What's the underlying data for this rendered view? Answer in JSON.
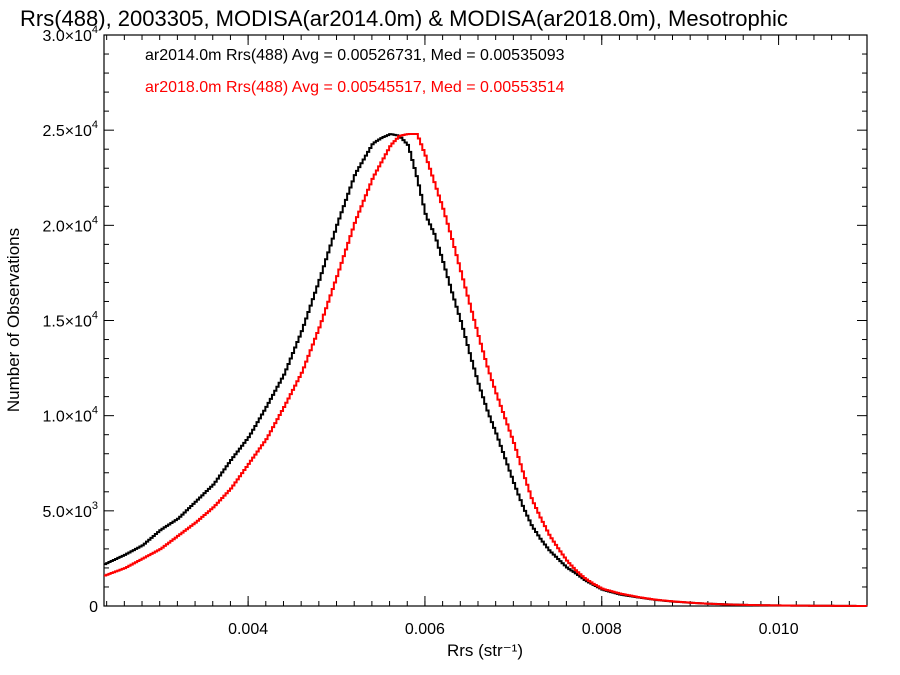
{
  "chart_data": {
    "type": "histogram",
    "title": "Rrs(488), 2003305, MODISA(ar2014.0m) & MODISA(ar2018.0m), Mesotrophic",
    "xlabel": "Rrs (str⁻¹)",
    "ylabel": "Number of Observations",
    "xlim": [
      0.00237,
      0.011
    ],
    "ylim": [
      0,
      30000
    ],
    "grid": false,
    "legend_position": "top-left",
    "x_ticks": [
      0.004,
      0.006,
      0.008,
      0.01
    ],
    "x_tick_labels": [
      "0.004",
      "0.006",
      "0.008",
      "0.010"
    ],
    "y_ticks": [
      0,
      5000,
      10000,
      15000,
      20000,
      25000,
      30000
    ],
    "y_tick_labels": [
      {
        "mantissa": "0",
        "exponent": ""
      },
      {
        "mantissa": "5.0×10",
        "exponent": "3"
      },
      {
        "mantissa": "1.0×10",
        "exponent": "4"
      },
      {
        "mantissa": "1.5×10",
        "exponent": "4"
      },
      {
        "mantissa": "2.0×10",
        "exponent": "4"
      },
      {
        "mantissa": "2.5×10",
        "exponent": "4"
      },
      {
        "mantissa": "3.0×10",
        "exponent": "4"
      }
    ],
    "series": [
      {
        "name": "ar2014.0m",
        "stats_label": "ar2014.0m Rrs(488) Avg = 0.00526731, Med = 0.00535093",
        "color": "#000000",
        "x": [
          0.00237,
          0.0026,
          0.0028,
          0.003,
          0.0032,
          0.0034,
          0.0036,
          0.0038,
          0.004,
          0.0042,
          0.0044,
          0.0046,
          0.0048,
          0.005,
          0.0052,
          0.0054,
          0.0055,
          0.0056,
          0.0057,
          0.0058,
          0.0059,
          0.006,
          0.0061,
          0.0062,
          0.0063,
          0.0064,
          0.0065,
          0.0066,
          0.0067,
          0.0068,
          0.0069,
          0.007,
          0.0071,
          0.0072,
          0.0073,
          0.0074,
          0.0075,
          0.0076,
          0.0077,
          0.0078,
          0.0079,
          0.008,
          0.0082,
          0.0084,
          0.0086,
          0.0088,
          0.009,
          0.0092,
          0.0094,
          0.0096,
          0.0098,
          0.01,
          0.0102,
          0.0104,
          0.0106,
          0.0108,
          0.011
        ],
        "values": [
          2200,
          2700,
          3200,
          4000,
          4600,
          5500,
          6400,
          7700,
          8900,
          10500,
          12200,
          14500,
          17200,
          20100,
          22700,
          24300,
          24600,
          24800,
          24700,
          24200,
          22500,
          20500,
          19500,
          18000,
          16400,
          14900,
          13200,
          11600,
          10200,
          9000,
          7700,
          6400,
          5200,
          4200,
          3500,
          2900,
          2450,
          2000,
          1700,
          1350,
          1100,
          850,
          600,
          450,
          320,
          230,
          170,
          120,
          90,
          60,
          40,
          30,
          20,
          15,
          10,
          5,
          0
        ]
      },
      {
        "name": "ar2018.0m",
        "stats_label": "ar2018.0m Rrs(488) Avg = 0.00545517, Med = 0.00553514",
        "color": "#ff0000",
        "x": [
          0.00237,
          0.0026,
          0.0028,
          0.003,
          0.0032,
          0.0034,
          0.0036,
          0.0038,
          0.004,
          0.0042,
          0.0044,
          0.0046,
          0.0048,
          0.005,
          0.0052,
          0.0054,
          0.0056,
          0.0057,
          0.0058,
          0.0059,
          0.006,
          0.0061,
          0.0062,
          0.0063,
          0.0064,
          0.0065,
          0.0066,
          0.0067,
          0.0068,
          0.0069,
          0.007,
          0.0071,
          0.0072,
          0.0073,
          0.0074,
          0.0075,
          0.0076,
          0.0077,
          0.0078,
          0.0079,
          0.008,
          0.0082,
          0.0084,
          0.0086,
          0.0088,
          0.009,
          0.0092,
          0.0094,
          0.0096,
          0.0098,
          0.01,
          0.0102,
          0.0104,
          0.0106,
          0.0108,
          0.011
        ],
        "values": [
          1600,
          2000,
          2500,
          3000,
          3700,
          4400,
          5200,
          6200,
          7500,
          8800,
          10500,
          12300,
          14700,
          17400,
          20200,
          22500,
          24200,
          24700,
          24800,
          24800,
          23600,
          22200,
          20800,
          19200,
          17500,
          15800,
          14100,
          12500,
          11100,
          9800,
          8500,
          7000,
          5600,
          4600,
          3700,
          3000,
          2350,
          1850,
          1450,
          1150,
          900,
          650,
          470,
          330,
          240,
          170,
          120,
          80,
          60,
          40,
          30,
          20,
          15,
          10,
          5,
          0
        ]
      }
    ]
  }
}
